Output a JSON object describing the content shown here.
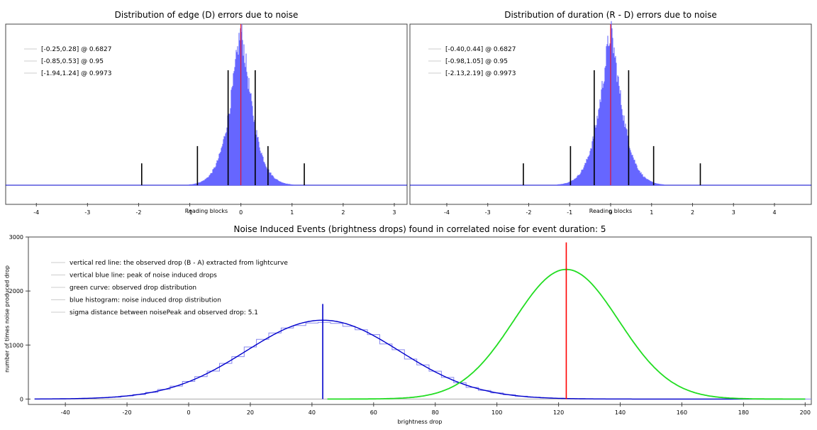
{
  "colors": {
    "red": "#ff0000",
    "blue": "#0000cc",
    "hist_fill": "#6666ff",
    "green": "#22dd22",
    "frame": "#444444",
    "legend_line": "#cccccc"
  },
  "chart_data": [
    {
      "type": "bar",
      "title": "Distribution of edge (D) errors due to noise",
      "xlabel": "Reading blocks",
      "ylabel": "",
      "xlim": [
        -4.6,
        3.25
      ],
      "xticks": [
        -4,
        -3,
        -2,
        -1,
        0,
        1,
        2,
        3
      ],
      "hist": {
        "center": 0.0,
        "scale": 0.28,
        "peak": 1.0
      },
      "red_line_x": 0,
      "legend_position": "top-left",
      "confidence_intervals": [
        {
          "label": "[-0.25,0.28] @ 0.6827",
          "low": -0.25,
          "high": 0.28,
          "height": 1.0
        },
        {
          "label": "[-0.85,0.53] @ 0.95",
          "low": -0.85,
          "high": 0.53,
          "height": 0.34
        },
        {
          "label": "[-1.94,1.24] @ 0.9973",
          "low": -1.94,
          "high": 1.24,
          "height": 0.19
        }
      ]
    },
    {
      "type": "bar",
      "title": "Distribution of duration (R - D) errors due to noise",
      "xlabel": "Reading blocks",
      "ylabel": "",
      "xlim": [
        -4.9,
        4.9
      ],
      "xticks": [
        -4,
        -3,
        -2,
        -1,
        0,
        1,
        2,
        3,
        4
      ],
      "hist": {
        "center": 0.0,
        "scale": 0.36,
        "peak": 1.0
      },
      "red_line_x": 0,
      "legend_position": "top-left",
      "confidence_intervals": [
        {
          "label": "[-0.40,0.44] @ 0.6827",
          "low": -0.4,
          "high": 0.44,
          "height": 1.0
        },
        {
          "label": "[-0.98,1.05] @ 0.95",
          "low": -0.98,
          "high": 1.05,
          "height": 0.34
        },
        {
          "label": "[-2.13,2.19] @ 0.9973",
          "low": -2.13,
          "high": 2.19,
          "height": 0.19
        }
      ]
    },
    {
      "type": "line",
      "title": "Noise Induced Events (brightness drops) found in correlated noise for event duration: 5",
      "xlabel": "brightness drop",
      "ylabel": "number of times noise produced drop",
      "xlim": [
        -52,
        202
      ],
      "ylim": [
        -100,
        3000
      ],
      "xticks": [
        -40,
        -20,
        0,
        20,
        40,
        60,
        80,
        100,
        120,
        140,
        160,
        180,
        200
      ],
      "yticks": [
        0,
        1000,
        2000,
        3000
      ],
      "legend_position": "top-left",
      "legend": [
        "vertical red line: the observed drop (B - A) extracted from lightcurve",
        "vertical blue line: peak of noise induced drops",
        "green curve: observed drop distribution",
        "blue histogram: noise induced drop distribution",
        "sigma distance between noisePeak and observed drop: 5.1"
      ],
      "series": [
        {
          "name": "blue histogram",
          "mean": 43.5,
          "sd": 25,
          "peak": 1460,
          "x_start": -50,
          "x_end": 200,
          "bin_width": 4
        },
        {
          "name": "green curve",
          "mean": 122.5,
          "sd": 17,
          "peak": 2400,
          "x_start": 45,
          "x_end": 200
        }
      ],
      "red_line": {
        "x": 122.5,
        "top": 2900
      },
      "blue_line": {
        "x": 43.5,
        "top": 1760
      }
    }
  ]
}
